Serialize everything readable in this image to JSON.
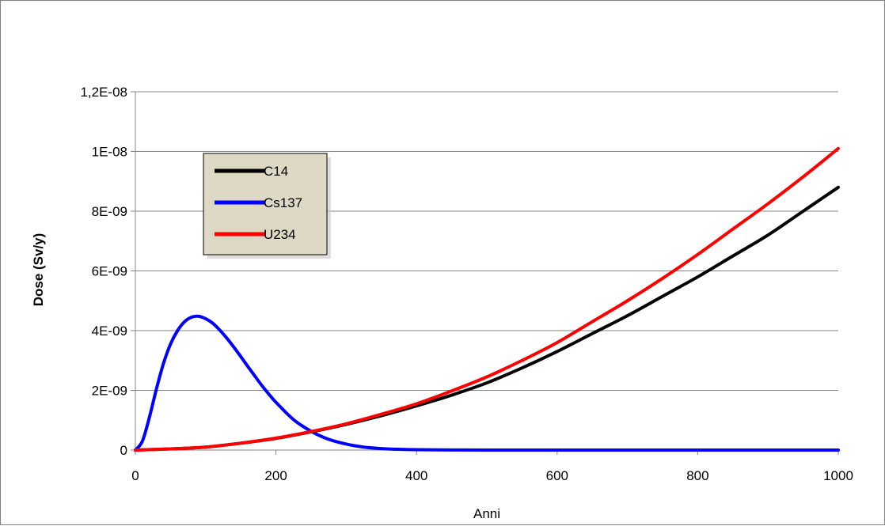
{
  "chart_data": {
    "type": "line",
    "title": "",
    "xlabel": "Anni",
    "ylabel": "Dose (Sv/y)",
    "xlim": [
      0,
      1000
    ],
    "ylim": [
      0,
      1.2e-08
    ],
    "x_ticks": [
      0,
      200,
      400,
      600,
      800,
      1000
    ],
    "x_tick_labels": [
      "0",
      "200",
      "400",
      "600",
      "800",
      "1000"
    ],
    "y_ticks": [
      0,
      2e-09,
      4e-09,
      6e-09,
      8e-09,
      1e-08,
      1.2e-08
    ],
    "y_tick_labels": [
      "0",
      "2E-09",
      "4E-09",
      "6E-09",
      "8E-09",
      "1E-08",
      "1,2E-08"
    ],
    "grid": "horizontal",
    "legend_position": "top-left",
    "series": [
      {
        "name": "C14",
        "color": "#000000",
        "x": [
          0,
          50,
          100,
          150,
          200,
          250,
          300,
          350,
          400,
          450,
          500,
          550,
          600,
          650,
          700,
          750,
          800,
          850,
          900,
          950,
          1000
        ],
        "y": [
          0,
          4e-11,
          1e-10,
          2.3e-10,
          3.9e-10,
          6.1e-10,
          8.6e-10,
          1.15e-09,
          1.48e-09,
          1.84e-09,
          2.25e-09,
          2.75e-09,
          3.3e-09,
          3.9e-09,
          4.5e-09,
          5.15e-09,
          5.8e-09,
          6.5e-09,
          7.2e-09,
          8e-09,
          8.8e-09
        ]
      },
      {
        "name": "Cs137",
        "color": "#0000ff",
        "x": [
          0,
          10,
          20,
          30,
          40,
          50,
          60,
          70,
          80,
          90,
          100,
          110,
          120,
          130,
          140,
          150,
          160,
          170,
          180,
          190,
          200,
          225,
          250,
          275,
          300,
          325,
          350,
          375,
          400,
          450,
          500,
          600,
          700,
          800,
          900,
          1000
        ],
        "y": [
          0,
          3e-10,
          1.1e-09,
          2.05e-09,
          2.9e-09,
          3.55e-09,
          4e-09,
          4.3e-09,
          4.45e-09,
          4.48e-09,
          4.4e-09,
          4.25e-09,
          4.02e-09,
          3.75e-09,
          3.45e-09,
          3.13e-09,
          2.8e-09,
          2.48e-09,
          2.16e-09,
          1.87e-09,
          1.6e-09,
          1.02e-09,
          6.3e-10,
          3.6e-10,
          2e-10,
          1e-10,
          5e-11,
          2.5e-11,
          1.2e-11,
          3e-12,
          1e-12,
          0,
          0,
          0,
          0,
          0
        ]
      },
      {
        "name": "U234",
        "color": "#ff0000",
        "x": [
          0,
          50,
          100,
          150,
          200,
          250,
          300,
          350,
          400,
          450,
          500,
          550,
          600,
          650,
          700,
          750,
          800,
          850,
          900,
          950,
          1000
        ],
        "y": [
          0,
          4e-11,
          1e-10,
          2.3e-10,
          4e-10,
          6.2e-10,
          8.8e-10,
          1.2e-09,
          1.55e-09,
          1.98e-09,
          2.45e-09,
          3e-09,
          3.6e-09,
          4.3e-09,
          5e-09,
          5.75e-09,
          6.55e-09,
          7.4e-09,
          8.25e-09,
          9.15e-09,
          1.01e-08
        ]
      }
    ]
  }
}
